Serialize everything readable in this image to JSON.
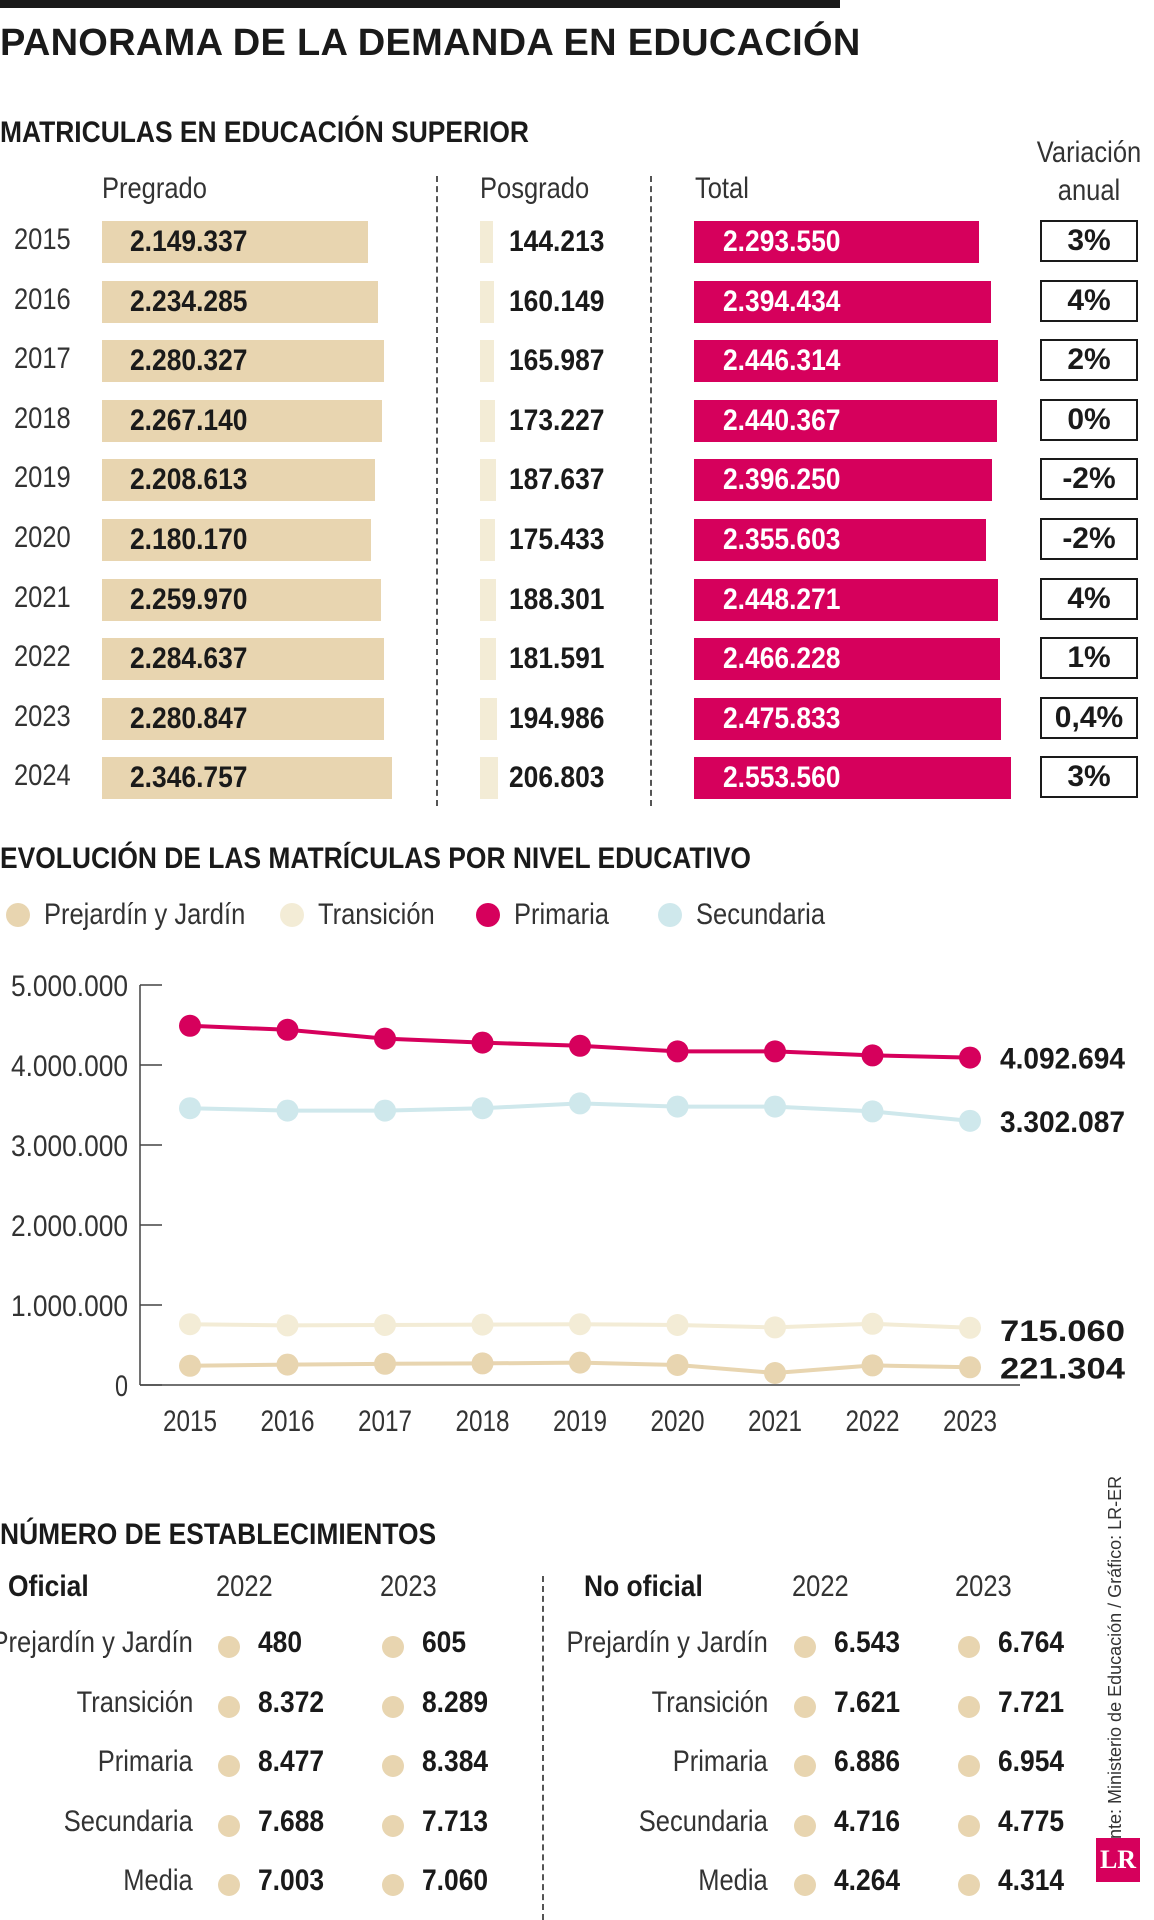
{
  "title": "PANORAMA DE LA DEMANDA EN EDUCACIÓN",
  "higher_ed": {
    "title": "MATRICULAS EN EDUCACIÓN SUPERIOR",
    "col_pregrado": "Pregrado",
    "col_posgrado": "Posgrado",
    "col_total": "Total",
    "col_variacion_1": "Variación",
    "col_variacion_2": "anual",
    "rows": [
      {
        "year": "2015",
        "pregrado": "2.149.337",
        "posgrado": "144.213",
        "total": "2.293.550",
        "variacion": "3%"
      },
      {
        "year": "2016",
        "pregrado": "2.234.285",
        "posgrado": "160.149",
        "total": "2.394.434",
        "variacion": "4%"
      },
      {
        "year": "2017",
        "pregrado": "2.280.327",
        "posgrado": "165.987",
        "total": "2.446.314",
        "variacion": "2%"
      },
      {
        "year": "2018",
        "pregrado": "2.267.140",
        "posgrado": "173.227",
        "total": "2.440.367",
        "variacion": "0%"
      },
      {
        "year": "2019",
        "pregrado": "2.208.613",
        "posgrado": "187.637",
        "total": "2.396.250",
        "variacion": "-2%"
      },
      {
        "year": "2020",
        "pregrado": "2.180.170",
        "posgrado": "175.433",
        "total": "2.355.603",
        "variacion": "-2%"
      },
      {
        "year": "2021",
        "pregrado": "2.259.970",
        "posgrado": "188.301",
        "total": "2.448.271",
        "variacion": "4%"
      },
      {
        "year": "2022",
        "pregrado": "2.284.637",
        "posgrado": "181.591",
        "total": "2.466.228",
        "variacion": "1%"
      },
      {
        "year": "2023",
        "pregrado": "2.280.847",
        "posgrado": "194.986",
        "total": "2.475.833",
        "variacion": "0,4%"
      },
      {
        "year": "2024",
        "pregrado": "2.346.757",
        "posgrado": "206.803",
        "total": "2.553.560",
        "variacion": "3%"
      }
    ]
  },
  "colors": {
    "pregrado": "#e8d5b0",
    "posgrado": "#f3ecd6",
    "total": "#d6005c",
    "prejardin": "#e8d5b0",
    "transicion": "#f3ecd6",
    "primaria": "#d6005c",
    "secundaria": "#cfe8ec"
  },
  "chart_data": [
    {
      "type": "bar",
      "orientation": "horizontal",
      "categories": [
        "2015",
        "2016",
        "2017",
        "2018",
        "2019",
        "2020",
        "2021",
        "2022",
        "2023",
        "2024"
      ],
      "series": [
        {
          "name": "Pregrado",
          "values": [
            2149337,
            2234285,
            2280327,
            2267140,
            2208613,
            2180170,
            2259970,
            2284637,
            2280847,
            2346757
          ]
        },
        {
          "name": "Posgrado",
          "values": [
            144213,
            160149,
            165987,
            173227,
            187637,
            175433,
            188301,
            181591,
            194986,
            206803
          ]
        },
        {
          "name": "Total",
          "values": [
            2293550,
            2394434,
            2446314,
            2440367,
            2396250,
            2355603,
            2448271,
            2466228,
            2475833,
            2553560
          ]
        }
      ],
      "title": "MATRICULAS EN EDUCACIÓN SUPERIOR"
    },
    {
      "type": "line",
      "title": "EVOLUCIÓN DE LAS MATRÍCULAS POR NIVEL EDUCATIVO",
      "x": [
        "2015",
        "2016",
        "2017",
        "2018",
        "2019",
        "2020",
        "2021",
        "2022",
        "2023"
      ],
      "ylim": [
        0,
        5000000
      ],
      "yticks": [
        0,
        1000000,
        2000000,
        3000000,
        4000000,
        5000000
      ],
      "ytick_labels": [
        "0",
        "1.000.000",
        "2.000.000",
        "3.000.000",
        "4.000.000",
        "5.000.000"
      ],
      "grid": false,
      "legend": "top",
      "series": [
        {
          "name": "Prejardín y Jardín",
          "color": "#e8d5b0",
          "values": [
            240000,
            255000,
            265000,
            270000,
            280000,
            250000,
            150000,
            245000,
            221304
          ]
        },
        {
          "name": "Transición",
          "color": "#f3ecd6",
          "values": [
            760000,
            745000,
            750000,
            755000,
            760000,
            750000,
            720000,
            765000,
            715060
          ]
        },
        {
          "name": "Primaria",
          "color": "#d6005c",
          "values": [
            4490000,
            4440000,
            4330000,
            4280000,
            4240000,
            4170000,
            4170000,
            4120000,
            4092694
          ]
        },
        {
          "name": "Secundaria",
          "color": "#cfe8ec",
          "values": [
            3460000,
            3430000,
            3430000,
            3460000,
            3520000,
            3480000,
            3480000,
            3420000,
            3302087
          ]
        }
      ],
      "end_labels": [
        "4.092.694",
        "3.302.087",
        "715.060",
        "221.304"
      ]
    }
  ],
  "establishments": {
    "title": "NÚMERO DE ESTABLECIMIENTOS",
    "oficial": {
      "label": "Oficial",
      "year1": "2022",
      "year2": "2023",
      "rows": [
        {
          "cat": "Prejardín y Jardín",
          "v2022": "480",
          "v2023": "605"
        },
        {
          "cat": "Transición",
          "v2022": "8.372",
          "v2023": "8.289"
        },
        {
          "cat": "Primaria",
          "v2022": "8.477",
          "v2023": "8.384"
        },
        {
          "cat": "Secundaria",
          "v2022": "7.688",
          "v2023": "7.713"
        },
        {
          "cat": "Media",
          "v2022": "7.003",
          "v2023": "7.060"
        }
      ]
    },
    "no_oficial": {
      "label": "No oficial",
      "year1": "2022",
      "year2": "2023",
      "rows": [
        {
          "cat": "Prejardín y Jardín",
          "v2022": "6.543",
          "v2023": "6.764"
        },
        {
          "cat": "Transición",
          "v2022": "7.621",
          "v2023": "7.721"
        },
        {
          "cat": "Primaria",
          "v2022": "6.886",
          "v2023": "6.954"
        },
        {
          "cat": "Secundaria",
          "v2022": "4.716",
          "v2023": "4.775"
        },
        {
          "cat": "Media",
          "v2022": "4.264",
          "v2023": "4.314"
        }
      ]
    }
  },
  "source": "Fuente: Ministerio de Educación / Gráfico: LR-ER",
  "logo_text": "LR"
}
